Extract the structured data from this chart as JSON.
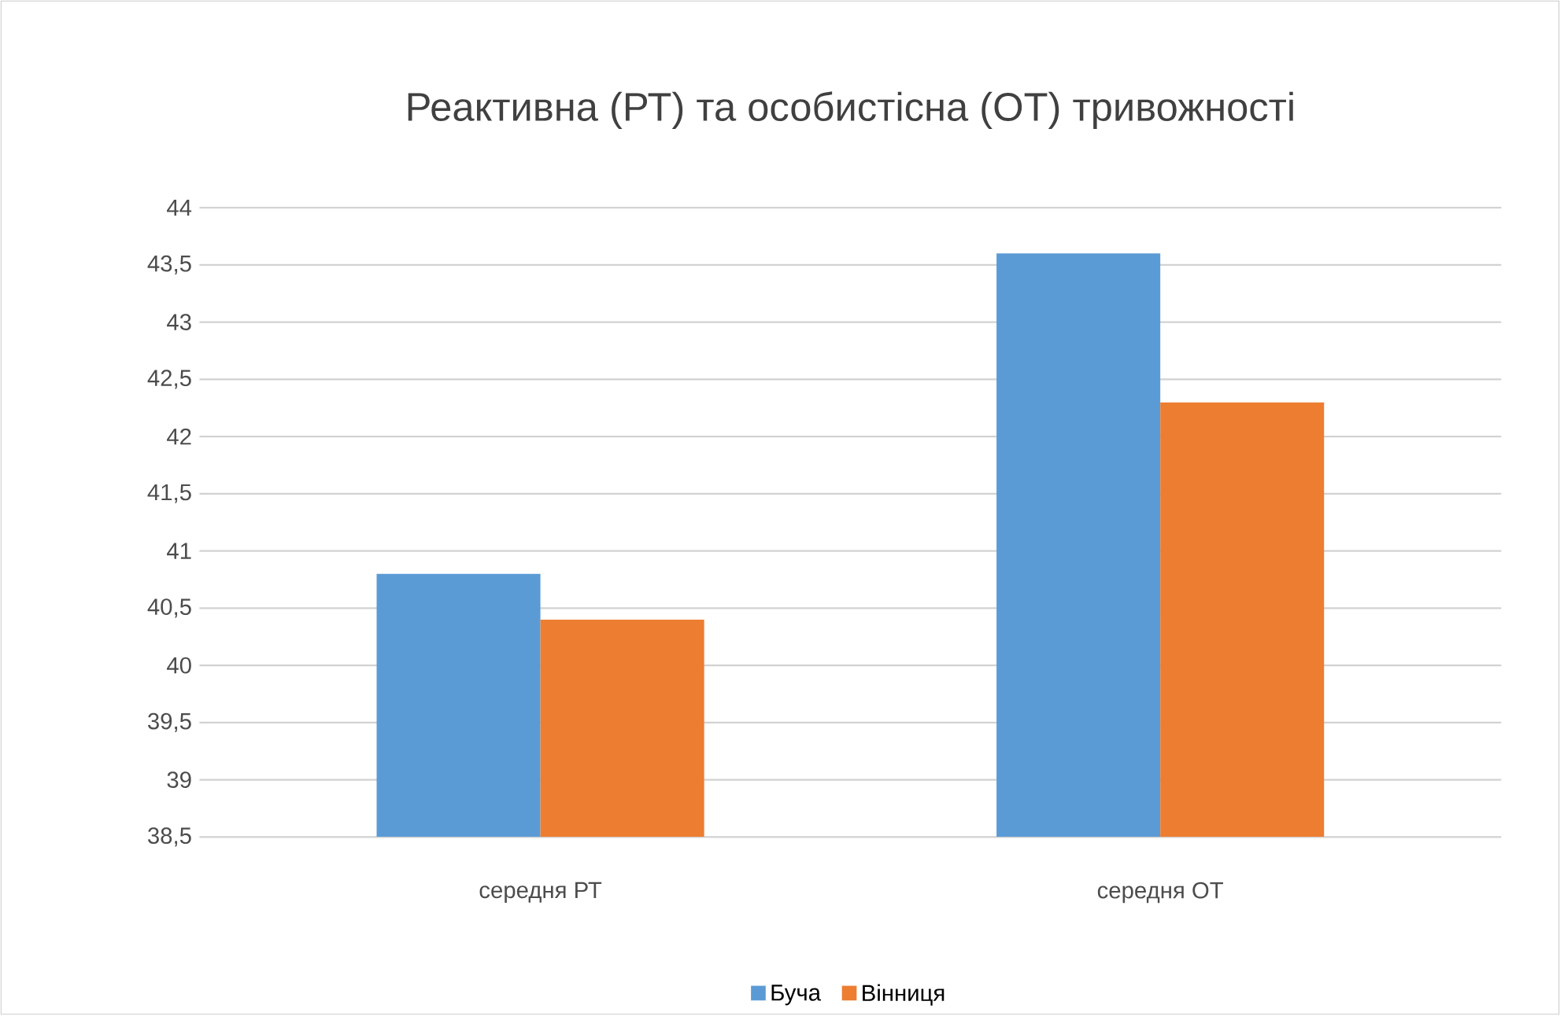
{
  "chart_data": {
    "type": "bar",
    "title": "Реактивна (РТ) та особистісна (ОТ) тривожності",
    "categories": [
      "середня РТ",
      "середня ОТ"
    ],
    "series": [
      {
        "name": "Буча",
        "color": "#5b9bd5",
        "values": [
          40.8,
          43.6
        ]
      },
      {
        "name": "Вінниця",
        "color": "#ed7d31",
        "values": [
          40.4,
          42.3
        ]
      }
    ],
    "ylim": [
      38.5,
      44
    ],
    "yticks": [
      {
        "value": 38.5,
        "label": "38,5"
      },
      39,
      {
        "value": 39.5,
        "label": "39,5"
      },
      40,
      {
        "value": 40.5,
        "label": "40,5"
      },
      41,
      {
        "value": 41.5,
        "label": "41,5"
      },
      42,
      {
        "value": 42.5,
        "label": "42,5"
      },
      43,
      {
        "value": 43.5,
        "label": "43,5"
      },
      44
    ],
    "grid": "y",
    "legend": "bottom"
  }
}
